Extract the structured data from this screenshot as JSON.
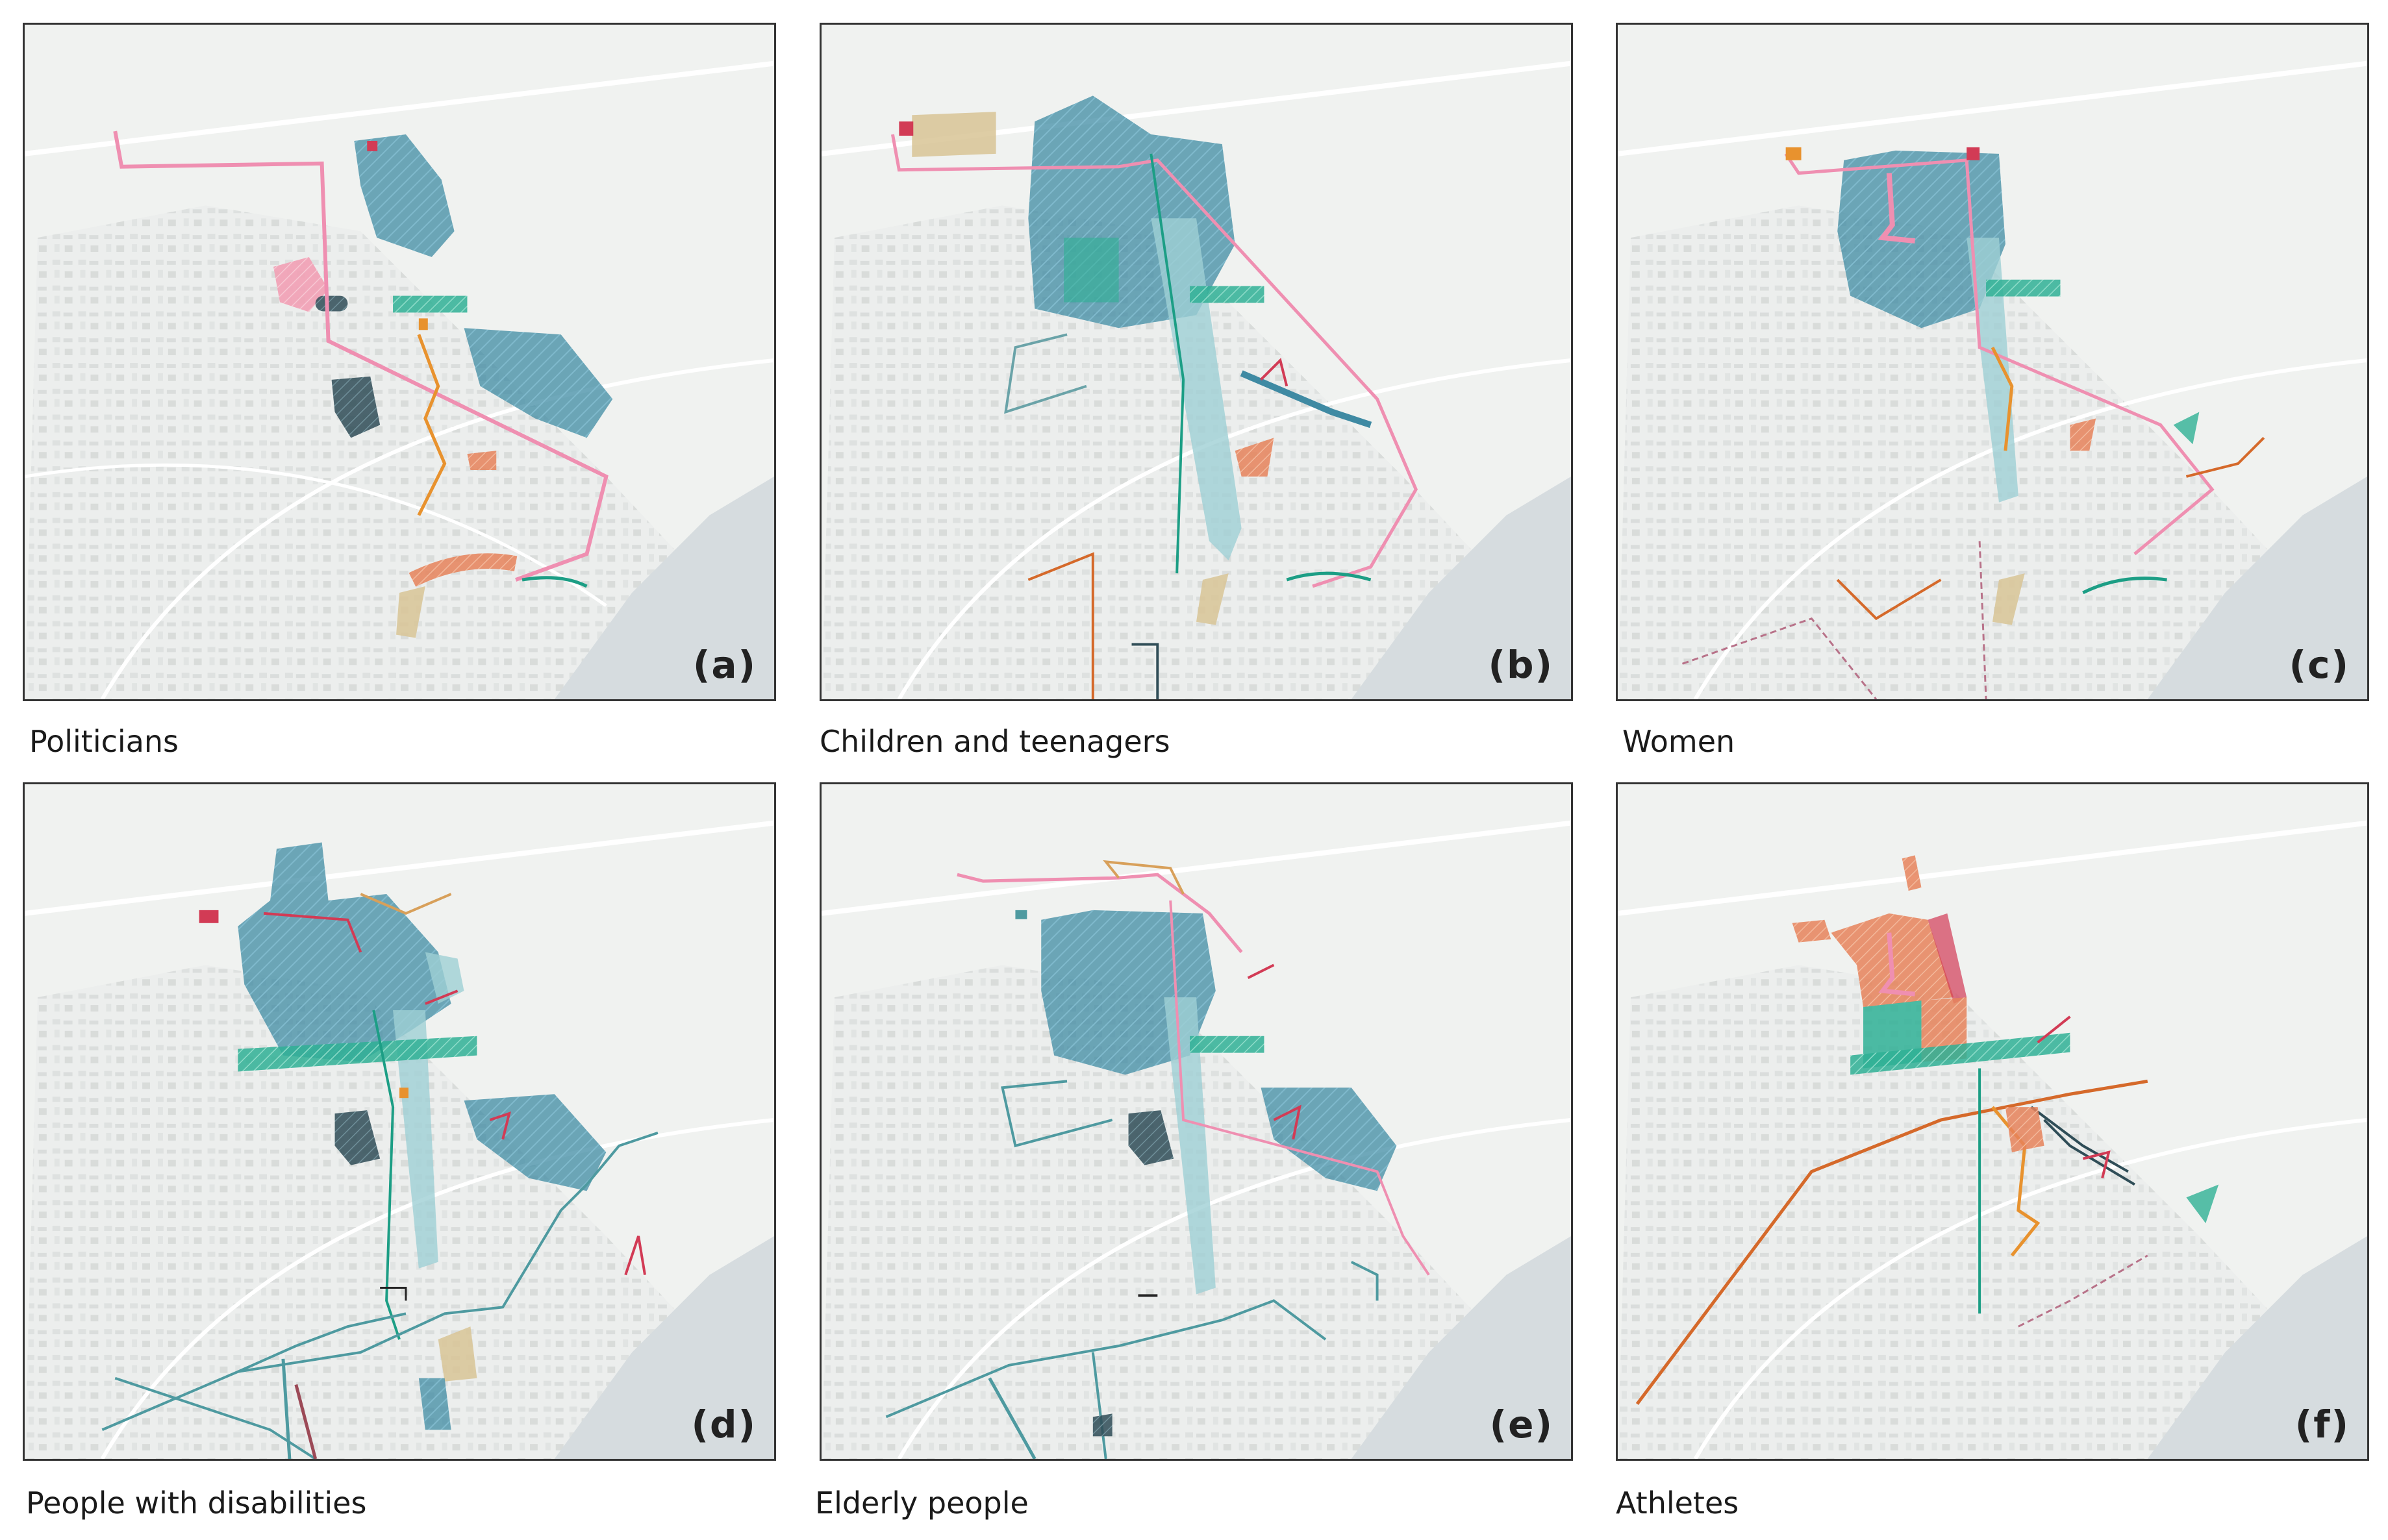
{
  "panels": [
    {
      "letter": "(a)",
      "caption": "Politicians"
    },
    {
      "letter": "(b)",
      "caption": "Children and teenagers"
    },
    {
      "letter": "(c)",
      "caption": "Women"
    },
    {
      "letter": "(d)",
      "caption": "People with disabilities"
    },
    {
      "letter": "(e)",
      "caption": "Elderly people"
    },
    {
      "letter": "(f)",
      "caption": "Athletes"
    }
  ],
  "colors": {
    "blue_zone": "#3f8aa3",
    "teal_strip": "#2fb095",
    "pink_route": "#ef8fb1",
    "orange_route": "#e8922e",
    "light_teal": "#9fd0d4",
    "dark_zone": "#2f4d57",
    "tan_zone": "#d8c495",
    "red_marker": "#d23b55",
    "salmon_zone": "#e6825a",
    "green_route": "#1c9e85",
    "sea": "#d6dcdf",
    "background": "#f0f2f0"
  }
}
